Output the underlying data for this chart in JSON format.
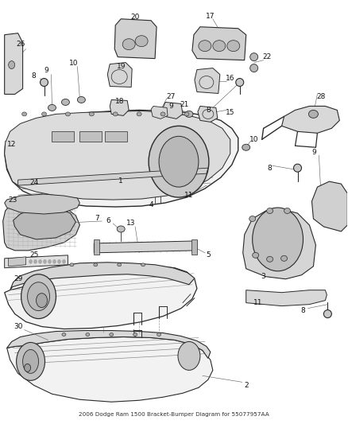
{
  "title": "2006 Dodge Ram 1500 Bracket-Bumper Diagram for 55077957AA",
  "bg_color": "#ffffff",
  "fig_width": 4.38,
  "fig_height": 5.33,
  "dpi": 100,
  "label_fontsize": 6.5,
  "label_color": "#111111",
  "line_color": "#2a2a2a"
}
